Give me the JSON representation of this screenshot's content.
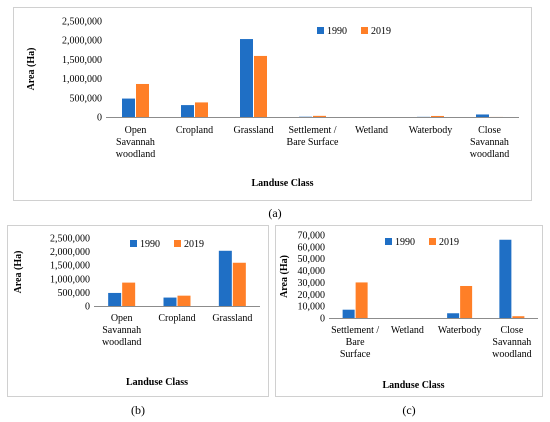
{
  "colors": {
    "series_1990": "#1f6fc5",
    "series_2019": "#ff7f27",
    "axis": "#8c8c8c",
    "frame": "#d0d0d0"
  },
  "captions": {
    "a": "(a)",
    "b": "(b)",
    "c": "(c)"
  },
  "chart_data": [
    {
      "id": "a",
      "type": "bar",
      "categories": [
        "Open Savannah woodland",
        "Cropland",
        "Grassland",
        "Settlement / Bare Surface",
        "Wetland",
        "Waterbody",
        "Close Savannah woodland"
      ],
      "category_label_lines": [
        [
          "Open",
          "Savannah",
          "woodland"
        ],
        [
          "Cropland"
        ],
        [
          "Grassland"
        ],
        [
          "Settlement /",
          "Bare Surface"
        ],
        [
          "Wetland"
        ],
        [
          "Waterbody"
        ],
        [
          "Close",
          "Savannah",
          "woodland"
        ]
      ],
      "series": [
        {
          "name": "1990",
          "values": [
            480000,
            310000,
            2030000,
            7000,
            0,
            4000,
            66000
          ]
        },
        {
          "name": "2019",
          "values": [
            860000,
            380000,
            1590000,
            30000,
            0,
            27000,
            1500
          ]
        }
      ],
      "ylim": [
        0,
        2500000
      ],
      "yticks": [
        0,
        500000,
        1000000,
        1500000,
        2000000,
        2500000
      ],
      "ytick_labels": [
        "0",
        "500,000",
        "1,000,000",
        "1,500,000",
        "2,000,000",
        "2,500,000"
      ],
      "ylabel": "Area (Ha)",
      "xlabel": "Landuse Class",
      "legend": "top-right",
      "grid": false
    },
    {
      "id": "b",
      "type": "bar",
      "categories": [
        "Open Savannah woodland",
        "Cropland",
        "Grassland"
      ],
      "category_label_lines": [
        [
          "Open",
          "Savannah",
          "woodland"
        ],
        [
          "Cropland"
        ],
        [
          "Grassland"
        ]
      ],
      "series": [
        {
          "name": "1990",
          "values": [
            480000,
            310000,
            2030000
          ]
        },
        {
          "name": "2019",
          "values": [
            860000,
            380000,
            1590000
          ]
        }
      ],
      "ylim": [
        0,
        2500000
      ],
      "yticks": [
        0,
        500000,
        1000000,
        1500000,
        2000000,
        2500000
      ],
      "ytick_labels": [
        "0",
        "500,000",
        "1,000,000",
        "1,500,000",
        "2,000,000",
        "2,500,000"
      ],
      "ylabel": "Area (Ha)",
      "xlabel": "Landuse Class",
      "legend": "top-right",
      "grid": false
    },
    {
      "id": "c",
      "type": "bar",
      "categories": [
        "Settlement / Bare Surface",
        "Wetland",
        "Waterbody",
        "Close Savannah woodland"
      ],
      "category_label_lines": [
        [
          "Settlement /",
          "Bare",
          "Surface"
        ],
        [
          "Wetland"
        ],
        [
          "Waterbody"
        ],
        [
          "Close",
          "Savannah",
          "woodland"
        ]
      ],
      "series": [
        {
          "name": "1990",
          "values": [
            7000,
            0,
            4000,
            66000
          ]
        },
        {
          "name": "2019",
          "values": [
            30000,
            0,
            27000,
            1500
          ]
        }
      ],
      "ylim": [
        0,
        70000
      ],
      "yticks": [
        0,
        10000,
        20000,
        30000,
        40000,
        50000,
        60000,
        70000
      ],
      "ytick_labels": [
        "0",
        "10,000",
        "20,000",
        "30,000",
        "40,000",
        "50,000",
        "60,000",
        "70,000"
      ],
      "ylabel": "Area (Ha)",
      "xlabel": "Landuse Class",
      "legend": "top-right",
      "grid": false
    }
  ]
}
